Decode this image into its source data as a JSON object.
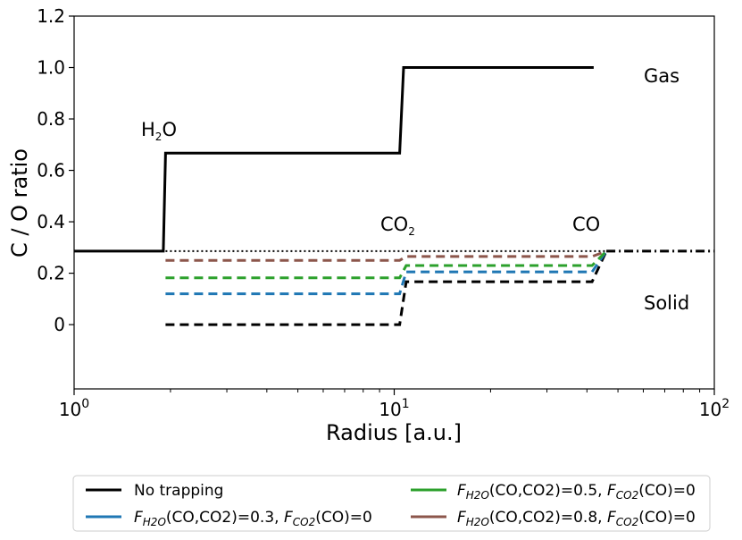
{
  "chart_data": {
    "type": "line",
    "xlabel": "Radius [a.u.]",
    "ylabel": "C / O ratio",
    "xscale": "log",
    "xlim": [
      1,
      100
    ],
    "ylim": [
      -0.25,
      1.2
    ],
    "x_ticks": [
      {
        "value": 1,
        "base": "10",
        "exp": "0"
      },
      {
        "value": 10,
        "base": "10",
        "exp": "1"
      },
      {
        "value": 100,
        "base": "10",
        "exp": "2"
      }
    ],
    "y_ticks": [
      {
        "value": 0,
        "label": "0"
      },
      {
        "value": 0.2,
        "label": "0.2"
      },
      {
        "value": 0.4,
        "label": "0.4"
      },
      {
        "value": 0.6,
        "label": "0.6"
      },
      {
        "value": 0.8,
        "label": "0.8"
      },
      {
        "value": 1.0,
        "label": "1.0"
      },
      {
        "value": 1.2,
        "label": "1.2"
      }
    ],
    "annotations": {
      "h2o": {
        "base": "H",
        "sub": "2",
        "rest": "O"
      },
      "co2": {
        "base": "CO",
        "sub": "2"
      },
      "co": "CO",
      "gas": "Gas",
      "solid": "Solid"
    },
    "series": [
      {
        "key": "gas_no_trap",
        "color": "#000000",
        "dash": "solid",
        "x": [
          1,
          1.9,
          1.93,
          10.4,
          10.7,
          42
        ],
        "y": [
          0.286,
          0.286,
          0.667,
          0.667,
          1.0,
          1.0
        ]
      },
      {
        "key": "gas_outer",
        "color": "#000000",
        "dash": "dashdot",
        "x": [
          46,
          100
        ],
        "y": [
          0.286,
          0.286
        ]
      },
      {
        "key": "total_ratio",
        "color": "#000000",
        "dash": "dotted",
        "x": [
          1.93,
          46
        ],
        "y": [
          0.286,
          0.286
        ]
      },
      {
        "key": "solid_no_trap",
        "color": "#000000",
        "dash": "dashed",
        "x": [
          1.93,
          10.4,
          10.9,
          41.5,
          46
        ],
        "y": [
          0.0,
          0.0,
          0.167,
          0.167,
          0.286
        ]
      },
      {
        "key": "solid_03",
        "color": "#1f77b4",
        "dash": "dashed",
        "x": [
          1.93,
          10.4,
          10.9,
          41.5,
          46
        ],
        "y": [
          0.12,
          0.12,
          0.205,
          0.205,
          0.286
        ]
      },
      {
        "key": "solid_05",
        "color": "#2ca02c",
        "dash": "dashed",
        "x": [
          1.93,
          10.4,
          10.9,
          41.5,
          46
        ],
        "y": [
          0.182,
          0.182,
          0.23,
          0.23,
          0.286
        ]
      },
      {
        "key": "solid_08",
        "color": "#8c564b",
        "dash": "dashed",
        "x": [
          1.93,
          10.4,
          10.9,
          41.5,
          46
        ],
        "y": [
          0.25,
          0.25,
          0.265,
          0.265,
          0.286
        ]
      }
    ],
    "legend": {
      "placement": "bottom",
      "entries": [
        {
          "color": "#000000",
          "label": "No trapping"
        },
        {
          "color": "#1f77b4",
          "f1": "F",
          "f1sub": "H2O",
          "mid": "(CO,CO2)=0.3, ",
          "f2": "F",
          "f2sub": "CO2",
          "tail": "(CO)=0"
        },
        {
          "color": "#2ca02c",
          "f1": "F",
          "f1sub": "H2O",
          "mid": "(CO,CO2)=0.5, ",
          "f2": "F",
          "f2sub": "CO2",
          "tail": "(CO)=0"
        },
        {
          "color": "#8c564b",
          "f1": "F",
          "f1sub": "H2O",
          "mid": "(CO,CO2)=0.8, ",
          "f2": "F",
          "f2sub": "CO2",
          "tail": "(CO)=0"
        }
      ]
    }
  }
}
